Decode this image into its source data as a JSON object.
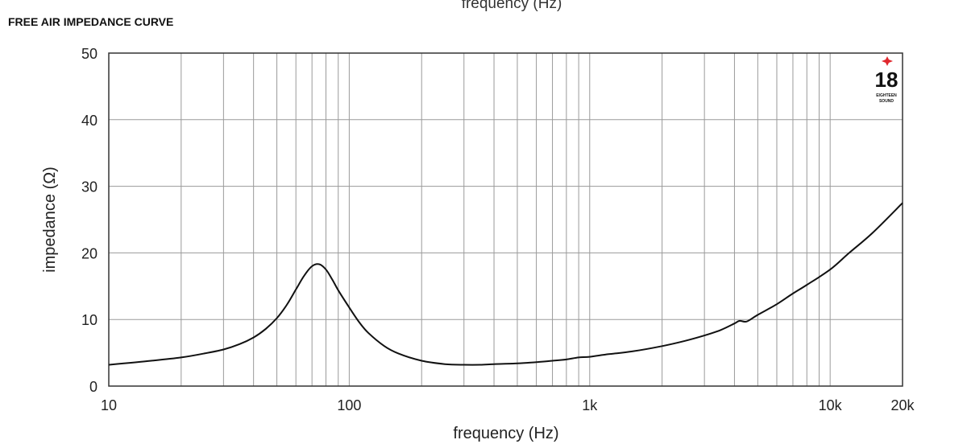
{
  "header": {
    "cut_text": "frequency (Hz)",
    "section_title": "FREE AIR IMPEDANCE CURVE"
  },
  "brand": {
    "number": "18",
    "line1": "EIGHTEEN",
    "line2": "SOUND",
    "star_color": "#e0282e"
  },
  "chart_data": {
    "type": "line",
    "title": "FREE AIR IMPEDANCE CURVE",
    "xlabel": "frequency (Hz)",
    "ylabel": "impedance (Ω)",
    "x_scale": "log",
    "xlim": [
      10,
      20000
    ],
    "ylim": [
      0,
      50
    ],
    "grid": true,
    "x_ticks": [
      {
        "value": 10,
        "label": "10"
      },
      {
        "value": 100,
        "label": "100"
      },
      {
        "value": 1000,
        "label": "1k"
      },
      {
        "value": 10000,
        "label": "10k"
      },
      {
        "value": 20000,
        "label": "20k"
      }
    ],
    "y_ticks": [
      {
        "value": 0,
        "label": "0"
      },
      {
        "value": 10,
        "label": "10"
      },
      {
        "value": 20,
        "label": "20"
      },
      {
        "value": 30,
        "label": "30"
      },
      {
        "value": 40,
        "label": "40"
      },
      {
        "value": 50,
        "label": "50"
      }
    ],
    "x_minor_gridlines": [
      20,
      30,
      40,
      50,
      60,
      70,
      80,
      90,
      200,
      300,
      400,
      500,
      600,
      700,
      800,
      900,
      2000,
      3000,
      4000,
      5000,
      6000,
      7000,
      8000,
      9000
    ],
    "series": [
      {
        "color": "#111111",
        "x": [
          10,
          15,
          20,
          25,
          30,
          35,
          40,
          45,
          50,
          55,
          60,
          65,
          70,
          75,
          80,
          85,
          90,
          100,
          110,
          120,
          140,
          160,
          200,
          250,
          300,
          350,
          400,
          500,
          600,
          700,
          800,
          900,
          1000,
          1200,
          1500,
          2000,
          2500,
          3000,
          3500,
          4000,
          4200,
          4500,
          5000,
          6000,
          7000,
          8000,
          10000,
          12000,
          15000,
          20000
        ],
        "y": [
          3.2,
          3.8,
          4.3,
          4.9,
          5.5,
          6.3,
          7.3,
          8.6,
          10.2,
          12.2,
          14.5,
          16.6,
          18.0,
          18.3,
          17.5,
          16.0,
          14.4,
          11.8,
          9.6,
          8.0,
          6.0,
          4.9,
          3.8,
          3.3,
          3.2,
          3.2,
          3.3,
          3.4,
          3.6,
          3.8,
          4.0,
          4.3,
          4.4,
          4.8,
          5.2,
          6.0,
          6.8,
          7.6,
          8.4,
          9.4,
          9.8,
          9.7,
          10.7,
          12.3,
          13.9,
          15.2,
          17.5,
          20.0,
          23.0,
          27.5
        ]
      }
    ]
  }
}
